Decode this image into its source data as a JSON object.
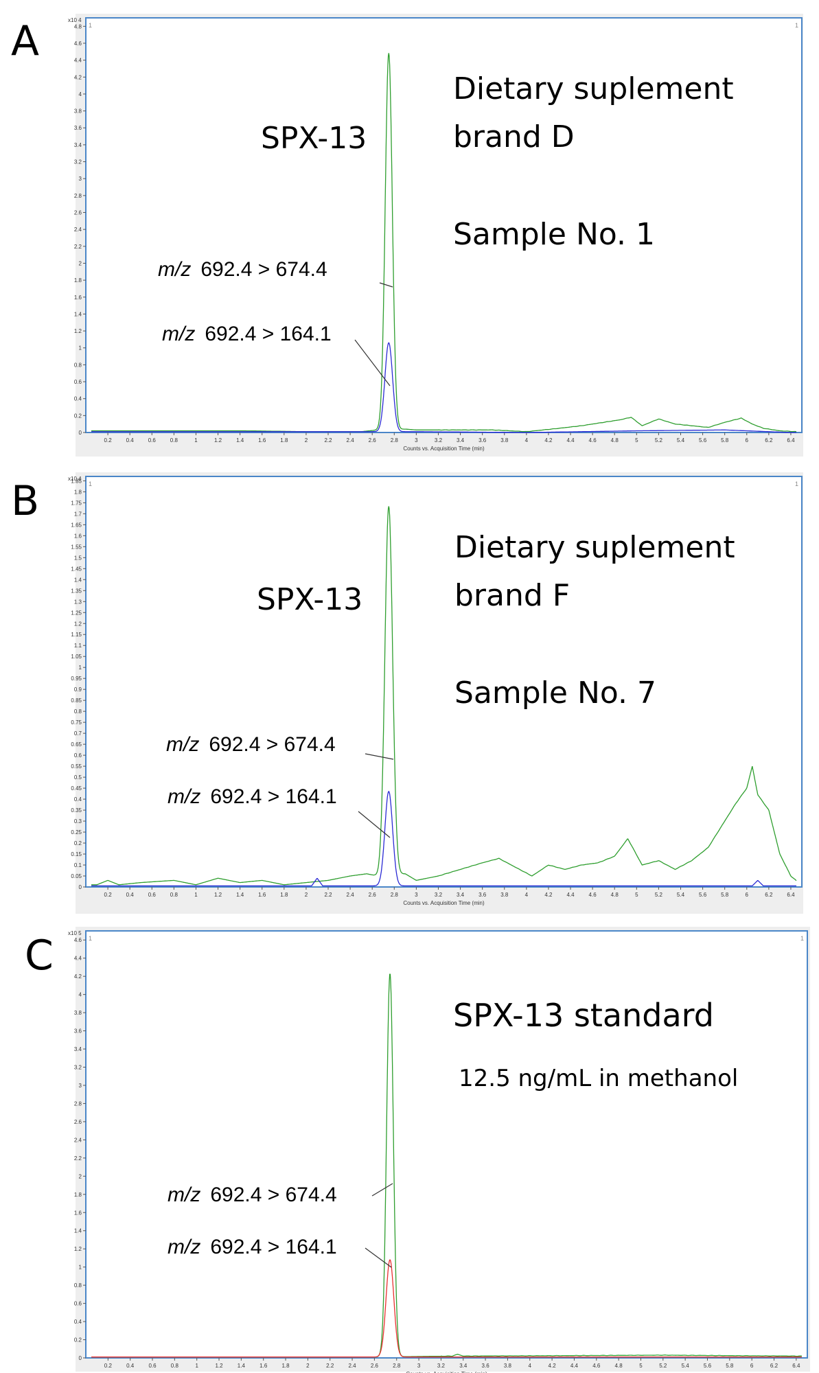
{
  "colors": {
    "transition_674": "#2e9e2e",
    "transition_164_blue": "#2a2ad4",
    "transition_164_red": "#e83030",
    "frame": "#4a86c8",
    "frame_bg": "#eeeeee"
  },
  "chart_data": [
    {
      "type": "line",
      "panel_label": "A",
      "title_lines": [
        "Dietary suplement",
        "brand D"
      ],
      "sample_label": "Sample No. 1",
      "analyte_label": "SPX-13",
      "y_exponent": "x10 4",
      "xlabel": "Counts vs. Acquisition Time (min)",
      "corner_marks": [
        "1",
        "1"
      ],
      "xlim": [
        0,
        6.5
      ],
      "ylim": [
        0,
        4.9
      ],
      "x_ticks": [
        "0.2",
        "0.4",
        "0.6",
        "0.8",
        "1",
        "1.2",
        "1.4",
        "1.6",
        "1.8",
        "2",
        "2.2",
        "2.4",
        "2.6",
        "2.8",
        "3",
        "3.2",
        "3.4",
        "3.6",
        "3.8",
        "4",
        "4.2",
        "4.4",
        "4.6",
        "4.8",
        "5",
        "5.2",
        "5.4",
        "5.6",
        "5.8",
        "6",
        "6.2",
        "6.4"
      ],
      "y_ticks": [
        "0",
        "0.2",
        "0.4",
        "0.6",
        "0.8",
        "1",
        "1.2",
        "1.4",
        "1.6",
        "1.8",
        "2",
        "2.2",
        "2.4",
        "2.6",
        "2.8",
        "3",
        "3.2",
        "3.4",
        "3.6",
        "3.8",
        "4",
        "4.2",
        "4.4",
        "4.6",
        "4.8"
      ],
      "series": [
        {
          "name": "m/z 692.4 > 674.4",
          "italic": "m/z",
          "transition": "692.4 > 674.4",
          "color": "#2e9e2e",
          "peak": {
            "x": 2.75,
            "y": 4.45,
            "width": 0.032
          },
          "baseline": [
            [
              0.95,
              0.02
            ],
            [
              1.45,
              0.02
            ],
            [
              2.0,
              0.01
            ],
            [
              2.5,
              0.01
            ],
            [
              2.65,
              0.03
            ],
            [
              2.9,
              0.04
            ],
            [
              3.0,
              0.03
            ],
            [
              3.3,
              0.03
            ],
            [
              3.5,
              0.03
            ],
            [
              3.7,
              0.03
            ],
            [
              4.0,
              0.01
            ],
            [
              4.3,
              0.05
            ],
            [
              4.5,
              0.08
            ],
            [
              4.7,
              0.12
            ],
            [
              4.85,
              0.15
            ],
            [
              4.95,
              0.18
            ],
            [
              5.05,
              0.08
            ],
            [
              5.2,
              0.16
            ],
            [
              5.35,
              0.1
            ],
            [
              5.5,
              0.08
            ],
            [
              5.65,
              0.06
            ],
            [
              5.8,
              0.12
            ],
            [
              5.95,
              0.17
            ],
            [
              6.05,
              0.1
            ],
            [
              6.15,
              0.05
            ],
            [
              6.3,
              0.02
            ],
            [
              6.45,
              0.01
            ]
          ]
        },
        {
          "name": "m/z 692.4 > 164.1",
          "italic": "m/z",
          "transition": "692.4 > 164.1",
          "color": "#2a2ad4",
          "peak": {
            "x": 2.75,
            "y": 1.05,
            "width": 0.035
          },
          "baseline": [
            [
              0.95,
              0.01
            ],
            [
              1.45,
              0.01
            ],
            [
              3.0,
              0.01
            ],
            [
              4.0,
              0.0
            ],
            [
              5.0,
              0.02
            ],
            [
              5.8,
              0.03
            ],
            [
              6.4,
              0.0
            ]
          ]
        }
      ]
    },
    {
      "type": "line",
      "panel_label": "B",
      "title_lines": [
        "Dietary suplement",
        "brand F"
      ],
      "sample_label": "Sample No. 7",
      "analyte_label": "SPX-13",
      "y_exponent": "x10 4",
      "xlabel": "Counts vs. Acquisition Time (min)",
      "corner_marks": [
        "1",
        "1"
      ],
      "xlim": [
        0,
        6.5
      ],
      "ylim": [
        0,
        1.87
      ],
      "x_ticks": [
        "0.2",
        "0.4",
        "0.6",
        "0.8",
        "1",
        "1.2",
        "1.4",
        "1.6",
        "1.8",
        "2",
        "2.2",
        "2.4",
        "2.6",
        "2.8",
        "3",
        "3.2",
        "3.4",
        "3.6",
        "3.8",
        "4",
        "4.2",
        "4.4",
        "4.6",
        "4.8",
        "5",
        "5.2",
        "5.4",
        "5.6",
        "5.8",
        "6",
        "6.2",
        "6.4"
      ],
      "y_ticks": [
        "0",
        "0.05",
        "0.1",
        "0.15",
        "0.2",
        "0.25",
        "0.3",
        "0.35",
        "0.4",
        "0.45",
        "0.5",
        "0.55",
        "0.6",
        "0.65",
        "0.7",
        "0.75",
        "0.8",
        "0.85",
        "0.9",
        "0.95",
        "1",
        "1.05",
        "1.1",
        "1.15",
        "1.2",
        "1.25",
        "1.3",
        "1.35",
        "1.4",
        "1.45",
        "1.5",
        "1.55",
        "1.6",
        "1.65",
        "1.7",
        "1.75",
        "1.8",
        "1.85"
      ],
      "series": [
        {
          "name": "m/z 692.4 > 674.4",
          "italic": "m/z",
          "transition": "692.4 > 674.4",
          "color": "#2e9e2e",
          "peak": {
            "x": 2.75,
            "y": 1.68,
            "width": 0.035
          },
          "baseline": [
            [
              0.1,
              0.01
            ],
            [
              0.2,
              0.03
            ],
            [
              0.3,
              0.01
            ],
            [
              0.5,
              0.02
            ],
            [
              0.8,
              0.03
            ],
            [
              1.0,
              0.01
            ],
            [
              1.2,
              0.04
            ],
            [
              1.4,
              0.02
            ],
            [
              1.6,
              0.03
            ],
            [
              1.8,
              0.01
            ],
            [
              2.0,
              0.02
            ],
            [
              2.2,
              0.03
            ],
            [
              2.4,
              0.05
            ],
            [
              2.55,
              0.06
            ],
            [
              2.65,
              0.05
            ],
            [
              2.9,
              0.06
            ],
            [
              3.0,
              0.03
            ],
            [
              3.2,
              0.05
            ],
            [
              3.4,
              0.08
            ],
            [
              3.6,
              0.11
            ],
            [
              3.75,
              0.13
            ],
            [
              3.9,
              0.09
            ],
            [
              4.05,
              0.05
            ],
            [
              4.2,
              0.1
            ],
            [
              4.35,
              0.08
            ],
            [
              4.5,
              0.1
            ],
            [
              4.65,
              0.11
            ],
            [
              4.8,
              0.14
            ],
            [
              4.92,
              0.22
            ],
            [
              5.05,
              0.1
            ],
            [
              5.2,
              0.12
            ],
            [
              5.35,
              0.08
            ],
            [
              5.5,
              0.12
            ],
            [
              5.65,
              0.18
            ],
            [
              5.8,
              0.3
            ],
            [
              5.9,
              0.38
            ],
            [
              6.0,
              0.45
            ],
            [
              6.05,
              0.55
            ],
            [
              6.1,
              0.42
            ],
            [
              6.2,
              0.35
            ],
            [
              6.3,
              0.15
            ],
            [
              6.4,
              0.05
            ],
            [
              6.47,
              0.02
            ]
          ]
        },
        {
          "name": "m/z 692.4 > 164.1",
          "italic": "m/z",
          "transition": "692.4 > 164.1",
          "color": "#2a2ad4",
          "peak": {
            "x": 2.75,
            "y": 0.43,
            "width": 0.035
          },
          "baseline": [
            [
              0.1,
              0.005
            ],
            [
              2.05,
              0.005
            ],
            [
              2.1,
              0.04
            ],
            [
              2.15,
              0.005
            ],
            [
              4.0,
              0.005
            ],
            [
              6.05,
              0.005
            ],
            [
              6.1,
              0.03
            ],
            [
              6.15,
              0.005
            ],
            [
              6.45,
              0.005
            ]
          ]
        }
      ]
    },
    {
      "type": "line",
      "panel_label": "C",
      "title_lines": [
        "SPX-13 standard"
      ],
      "concentration_label": "12.5 ng/mL in methanol",
      "y_exponent": "x10 5",
      "xlabel": "Counts vs. Acquisition Time (min)",
      "corner_marks": [
        "1",
        "1"
      ],
      "xlim": [
        0,
        6.5
      ],
      "ylim": [
        0,
        4.7
      ],
      "x_ticks": [
        "0.2",
        "0.4",
        "0.6",
        "0.8",
        "1",
        "1.2",
        "1.4",
        "1.6",
        "1.8",
        "2",
        "2.2",
        "2.4",
        "2.6",
        "2.8",
        "3",
        "3.2",
        "3.4",
        "3.6",
        "3.8",
        "4",
        "4.2",
        "4.4",
        "4.6",
        "4.8",
        "5",
        "5.2",
        "5.4",
        "5.6",
        "5.8",
        "6",
        "6.2",
        "6.4"
      ],
      "y_ticks": [
        "0",
        "0.2",
        "0.4",
        "0.6",
        "0.8",
        "1",
        "1.2",
        "1.4",
        "1.6",
        "1.8",
        "2",
        "2.2",
        "2.4",
        "2.6",
        "2.8",
        "3",
        "3.2",
        "3.4",
        "3.6",
        "3.8",
        "4",
        "4.2",
        "4.4",
        "4.6"
      ],
      "series": [
        {
          "name": "m/z 692.4 > 674.4",
          "italic": "m/z",
          "transition": "692.4 > 674.4",
          "color": "#2e9e2e",
          "peak": {
            "x": 2.74,
            "y": 4.22,
            "width": 0.03
          },
          "baseline": [
            [
              0.05,
              0.01
            ],
            [
              2.6,
              0.01
            ],
            [
              3.3,
              0.02
            ],
            [
              3.35,
              0.04
            ],
            [
              3.4,
              0.02
            ],
            [
              5.2,
              0.03
            ],
            [
              6.4,
              0.02
            ]
          ]
        },
        {
          "name": "m/z 692.4 > 164.1",
          "italic": "m/z",
          "transition": "692.4 > 164.1",
          "color": "#e83030",
          "peak": {
            "x": 2.74,
            "y": 1.07,
            "width": 0.035
          },
          "baseline": [
            [
              0.05,
              0.01
            ],
            [
              2.6,
              0.01
            ],
            [
              3.5,
              0.01
            ],
            [
              6.4,
              0.01
            ]
          ]
        }
      ]
    }
  ]
}
